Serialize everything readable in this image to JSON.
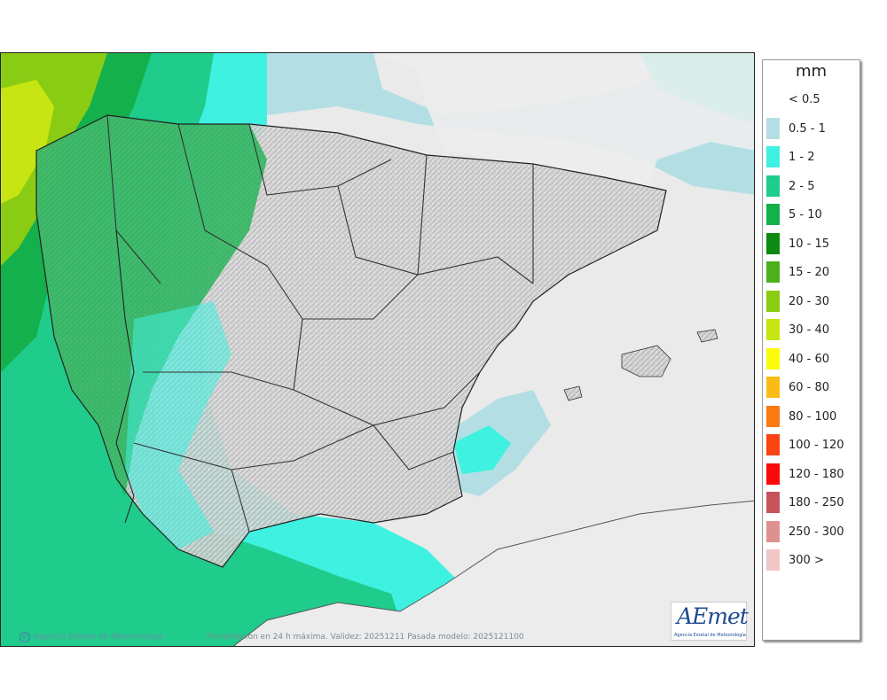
{
  "map": {
    "credit_left": "Agencia Estatal de Meteorología",
    "credit_center": "Precipitación en 24 h máxima. Validez: 20251211 Pasada modelo: 2025121100",
    "logo_text": "AEmet",
    "logo_subtitle": "Agencia Estatal de Meteorología"
  },
  "legend": {
    "unit": "mm",
    "items": [
      {
        "label": "< 0.5",
        "color": "#ffffff"
      },
      {
        "label": "0.5 - 1",
        "color": "#b3dfe4"
      },
      {
        "label": "1 - 2",
        "color": "#3ff1e0"
      },
      {
        "label": "2 - 5",
        "color": "#1fcc8b"
      },
      {
        "label": "5 - 10",
        "color": "#13b04b"
      },
      {
        "label": "10 - 15",
        "color": "#0b8b12"
      },
      {
        "label": "15 - 20",
        "color": "#4bb11a"
      },
      {
        "label": "20 - 30",
        "color": "#8acb14"
      },
      {
        "label": "30 - 40",
        "color": "#c6e512"
      },
      {
        "label": "40 - 60",
        "color": "#fbfb0a"
      },
      {
        "label": "60 - 80",
        "color": "#fbbb17"
      },
      {
        "label": "80 - 100",
        "color": "#fb7a12"
      },
      {
        "label": "100 - 120",
        "color": "#fb4311"
      },
      {
        "label": "120 - 180",
        "color": "#fb0a0a"
      },
      {
        "label": "180 - 250",
        "color": "#c9535a"
      },
      {
        "label": "250 - 300",
        "color": "#df9191"
      },
      {
        "label": "300 >",
        "color": "#f0c6c6"
      }
    ]
  }
}
